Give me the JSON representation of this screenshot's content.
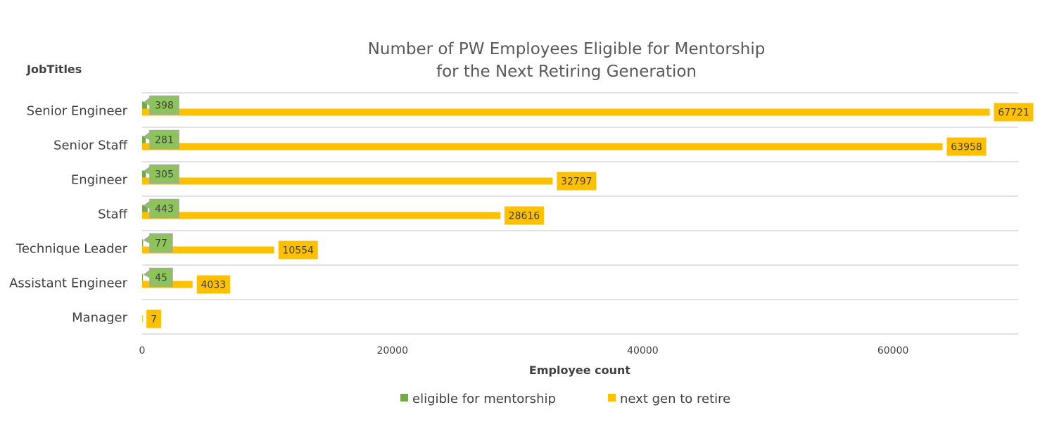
{
  "chart_data": {
    "type": "bar",
    "orientation": "horizontal",
    "title_lines": [
      "Number of PW Employees Eligible for Mentorship",
      "for the Next Retiring Generation"
    ],
    "ylabel": "JobTitles",
    "xlabel": "Employee count",
    "categories": [
      "Senior Engineer",
      "Senior Staff",
      "Engineer",
      "Staff",
      "Technique Leader",
      "Assistant Engineer",
      "Manager"
    ],
    "series": [
      {
        "name": "eligible for mentorship",
        "color": "#70AD47",
        "values": [
          398,
          281,
          305,
          443,
          77,
          45,
          0
        ],
        "show_labels": [
          true,
          true,
          true,
          true,
          true,
          true,
          false
        ]
      },
      {
        "name": "next gen to retire",
        "color": "#FFC000",
        "values": [
          67721,
          63958,
          32797,
          28616,
          10554,
          4033,
          7
        ],
        "show_labels": [
          true,
          true,
          true,
          true,
          true,
          true,
          true
        ]
      }
    ],
    "xlim": [
      0,
      70000
    ],
    "xticks": [
      0,
      20000,
      40000,
      60000
    ],
    "xtick_labels": [
      "0",
      "20000",
      "40000",
      "60000"
    ],
    "grid": "horizontal",
    "legend_position": "bottom"
  }
}
